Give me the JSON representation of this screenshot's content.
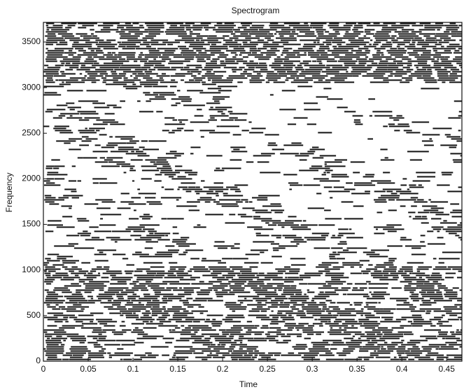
{
  "chart_data": {
    "type": "spectrogram",
    "title": "Spectrogram",
    "xlabel": "Time",
    "ylabel": "Frequency",
    "xlim": [
      0,
      0.467
    ],
    "xticks": [
      0,
      0.05,
      0.1,
      0.15,
      0.2,
      0.25,
      0.3,
      0.35,
      0.4,
      0.45
    ],
    "ylim": [
      0,
      3715
    ],
    "yticks": [
      0,
      500,
      1000,
      1500,
      2000,
      2500,
      3000,
      3500
    ],
    "color": "#111111"
  }
}
